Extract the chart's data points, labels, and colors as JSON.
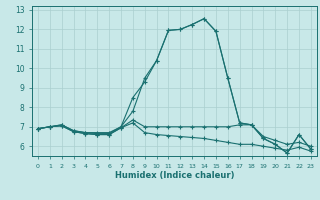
{
  "xlabel": "Humidex (Indice chaleur)",
  "bg_color": "#c8e8e8",
  "line_color": "#1a7070",
  "grid_color": "#aacfcf",
  "xlim": [
    -0.5,
    23.5
  ],
  "ylim": [
    5.5,
    13.2
  ],
  "yticks": [
    6,
    7,
    8,
    9,
    10,
    11,
    12,
    13
  ],
  "xticks": [
    0,
    1,
    2,
    3,
    4,
    5,
    6,
    7,
    8,
    9,
    10,
    11,
    12,
    13,
    14,
    15,
    16,
    17,
    18,
    19,
    20,
    21,
    22,
    23
  ],
  "line1_x": [
    0,
    1,
    2,
    3,
    4,
    5,
    6,
    7,
    8,
    9,
    10,
    11,
    12,
    13,
    14,
    15,
    16,
    17,
    18,
    19,
    20,
    21,
    22,
    23
  ],
  "line1_y": [
    6.9,
    7.0,
    7.1,
    6.8,
    6.7,
    6.7,
    6.7,
    7.0,
    7.8,
    9.5,
    10.4,
    11.95,
    12.0,
    12.25,
    12.55,
    11.9,
    9.5,
    7.2,
    7.1,
    6.4,
    6.1,
    5.65,
    6.6,
    5.85
  ],
  "line2_x": [
    0,
    1,
    2,
    3,
    4,
    5,
    6,
    7,
    8,
    9,
    10,
    11,
    12,
    13,
    14,
    15,
    16,
    17,
    18,
    19,
    20,
    21,
    22,
    23
  ],
  "line2_y": [
    6.9,
    7.0,
    7.1,
    6.8,
    6.7,
    6.65,
    6.65,
    7.0,
    8.5,
    9.3,
    10.4,
    11.95,
    12.0,
    12.25,
    12.55,
    11.9,
    9.5,
    7.2,
    7.1,
    6.4,
    6.1,
    5.65,
    6.6,
    5.85
  ],
  "line3_x": [
    0,
    1,
    2,
    3,
    4,
    5,
    6,
    7,
    8,
    9,
    10,
    11,
    12,
    13,
    14,
    15,
    16,
    17,
    18,
    19,
    20,
    21,
    22,
    23
  ],
  "line3_y": [
    6.9,
    7.0,
    7.05,
    6.75,
    6.65,
    6.6,
    6.6,
    6.95,
    7.35,
    7.0,
    7.0,
    7.0,
    7.0,
    7.0,
    7.0,
    7.0,
    7.0,
    7.1,
    7.1,
    6.5,
    6.3,
    6.1,
    6.2,
    6.0
  ],
  "line4_x": [
    0,
    1,
    2,
    3,
    4,
    5,
    6,
    7,
    8,
    9,
    10,
    11,
    12,
    13,
    14,
    15,
    16,
    17,
    18,
    19,
    20,
    21,
    22,
    23
  ],
  "line4_y": [
    6.9,
    7.0,
    7.05,
    6.75,
    6.65,
    6.6,
    6.6,
    6.95,
    7.2,
    6.7,
    6.6,
    6.55,
    6.5,
    6.45,
    6.4,
    6.3,
    6.2,
    6.1,
    6.1,
    6.0,
    5.9,
    5.8,
    5.95,
    5.75
  ]
}
